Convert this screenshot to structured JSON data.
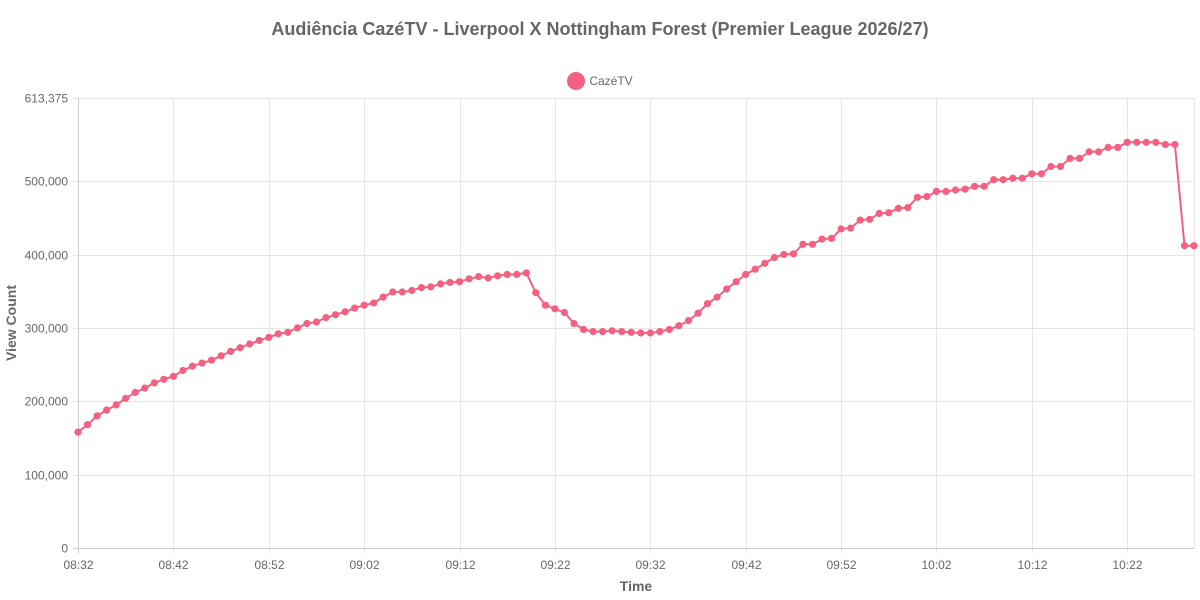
{
  "chart_data": {
    "type": "line",
    "title": "Audiência CazéTV - Liverpool X Nottingham Forest (Premier League 2026/27)",
    "xlabel": "Time",
    "ylabel": "View Count",
    "ylim": [
      0,
      613375
    ],
    "y_ticks": [
      0,
      100000,
      200000,
      300000,
      400000,
      500000,
      613375
    ],
    "y_tick_labels": [
      "0",
      "100,000",
      "200,000",
      "300,000",
      "400,000",
      "500,000",
      "613,375"
    ],
    "x_tick_labels": [
      "08:32",
      "08:42",
      "08:52",
      "09:02",
      "09:12",
      "09:22",
      "09:32",
      "09:42",
      "09:52",
      "10:02",
      "10:12",
      "10:22"
    ],
    "x_range_minutes": [
      "08:32",
      "10:29"
    ],
    "grid": true,
    "legend_position": "top",
    "series": [
      {
        "name": "CazéTV",
        "color": "#f4607f",
        "x": [
          "08:32",
          "08:33",
          "08:34",
          "08:35",
          "08:36",
          "08:37",
          "08:38",
          "08:39",
          "08:40",
          "08:41",
          "08:42",
          "08:43",
          "08:44",
          "08:45",
          "08:46",
          "08:47",
          "08:48",
          "08:49",
          "08:50",
          "08:51",
          "08:52",
          "08:53",
          "08:54",
          "08:55",
          "08:56",
          "08:57",
          "08:58",
          "08:59",
          "09:00",
          "09:01",
          "09:02",
          "09:03",
          "09:04",
          "09:05",
          "09:06",
          "09:07",
          "09:08",
          "09:09",
          "09:10",
          "09:11",
          "09:12",
          "09:13",
          "09:14",
          "09:15",
          "09:16",
          "09:17",
          "09:18",
          "09:19",
          "09:20",
          "09:21",
          "09:22",
          "09:23",
          "09:24",
          "09:25",
          "09:26",
          "09:27",
          "09:28",
          "09:29",
          "09:30",
          "09:31",
          "09:32",
          "09:33",
          "09:34",
          "09:35",
          "09:36",
          "09:37",
          "09:38",
          "09:39",
          "09:40",
          "09:41",
          "09:42",
          "09:43",
          "09:44",
          "09:45",
          "09:46",
          "09:47",
          "09:48",
          "09:49",
          "09:50",
          "09:51",
          "09:52",
          "09:53",
          "09:54",
          "09:55",
          "09:56",
          "09:57",
          "09:58",
          "09:59",
          "10:00",
          "10:01",
          "10:02",
          "10:03",
          "10:04",
          "10:05",
          "10:06",
          "10:07",
          "10:08",
          "10:09",
          "10:10",
          "10:11",
          "10:12",
          "10:13",
          "10:14",
          "10:15",
          "10:16",
          "10:17",
          "10:18",
          "10:19",
          "10:20",
          "10:21",
          "10:22",
          "10:23",
          "10:24",
          "10:25",
          "10:26",
          "10:27",
          "10:28",
          "10:29"
        ],
        "values": [
          158000,
          168000,
          180000,
          188000,
          195000,
          204000,
          212000,
          218000,
          225000,
          230000,
          234000,
          242000,
          248000,
          252000,
          256000,
          262000,
          268000,
          273000,
          278000,
          283000,
          287000,
          292000,
          294000,
          300000,
          306000,
          308000,
          314000,
          318000,
          322000,
          327000,
          331000,
          334000,
          342000,
          349000,
          349000,
          351000,
          355000,
          356000,
          360000,
          362000,
          363000,
          367000,
          370000,
          368000,
          371000,
          373000,
          373000,
          375000,
          348000,
          331000,
          326000,
          321000,
          306000,
          298000,
          295000,
          295000,
          296000,
          295000,
          294000,
          293000,
          293000,
          295000,
          298000,
          303000,
          310000,
          320000,
          333000,
          342000,
          353000,
          363000,
          373000,
          380000,
          388000,
          396000,
          400000,
          401000,
          414000,
          414000,
          421000,
          422000,
          435000,
          436000,
          447000,
          448000,
          456000,
          457000,
          463000,
          464000,
          478000,
          479000,
          486000,
          486000,
          488000,
          489000,
          493000,
          493000,
          502000,
          502000,
          504000,
          504000,
          510000,
          510000,
          520000,
          520000,
          531000,
          531000,
          540000,
          540000,
          546000,
          546000,
          553000,
          553000,
          553000,
          553000,
          550000,
          550000,
          412000,
          412000
        ]
      }
    ]
  }
}
